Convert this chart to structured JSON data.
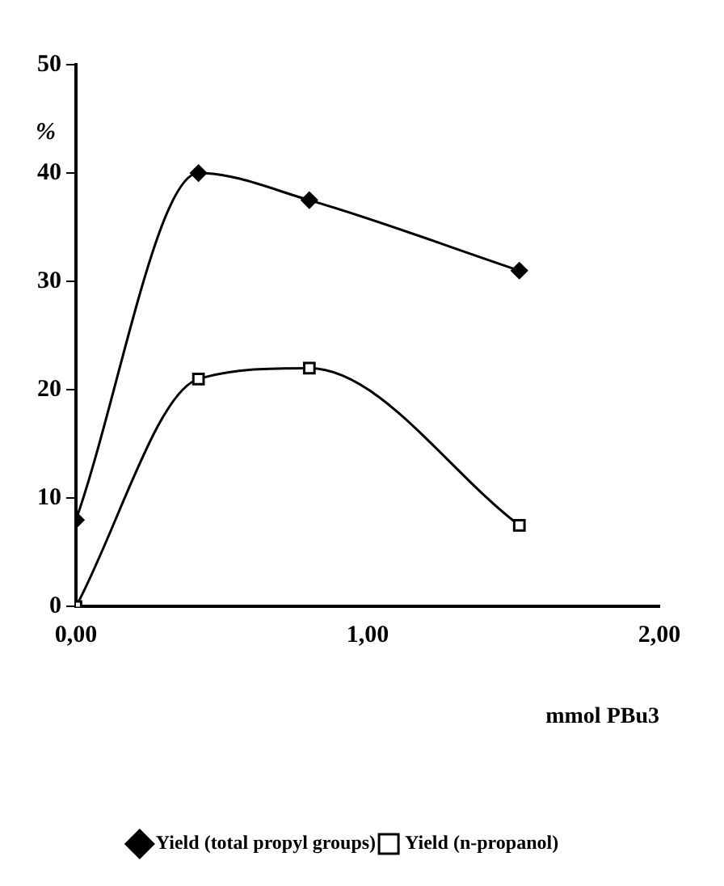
{
  "chart_data": {
    "type": "line",
    "xlabel": "mmol PBu3",
    "ylabel": "%",
    "xlim": [
      0,
      2
    ],
    "xticks": [
      {
        "value": 0,
        "label": "0,00"
      },
      {
        "value": 1,
        "label": "1,00"
      },
      {
        "value": 2,
        "label": "2,00"
      }
    ],
    "ylim": [
      0,
      50
    ],
    "yticks": [
      0,
      10,
      20,
      30,
      40,
      50
    ],
    "grid": false,
    "legend": "bottom",
    "line_style": "solid",
    "series": [
      {
        "name": "Yield (total propyl groups)",
        "color": "#000000",
        "marker": "diamond",
        "x": [
          0,
          0.42,
          0.8,
          1.52
        ],
        "values": [
          8,
          40,
          37.5,
          31
        ]
      },
      {
        "name": "Yield (n-propanol)",
        "color": "#000000",
        "marker": "square",
        "x": [
          0,
          0.42,
          0.8,
          1.52
        ],
        "values": [
          0,
          21,
          22,
          7.5
        ]
      }
    ]
  }
}
